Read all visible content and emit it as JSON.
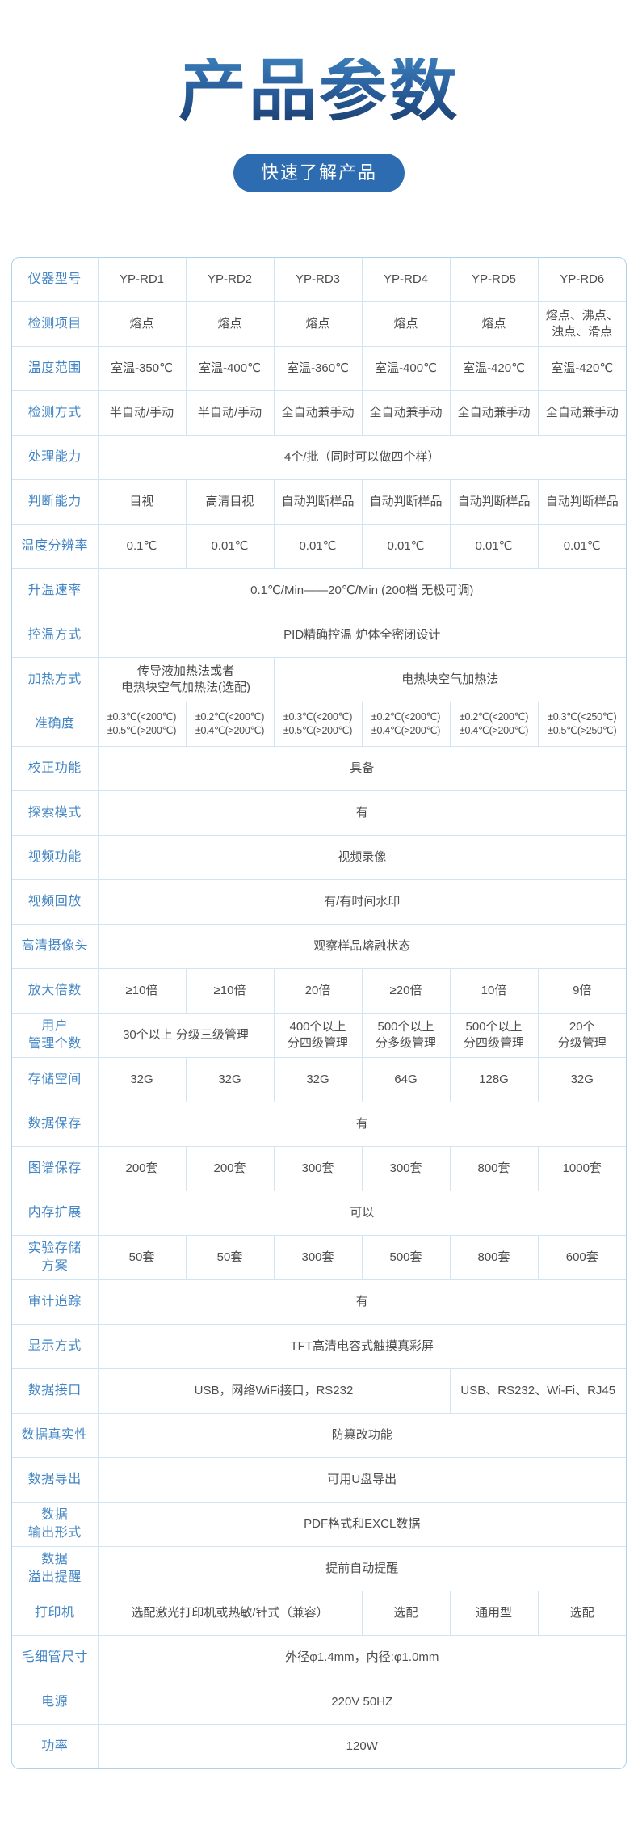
{
  "page": {
    "title": "产品参数",
    "subtitle": "快速了解产品"
  },
  "colors": {
    "title_blue_top": "#3a7db8",
    "title_blue_bottom": "#1c3f70",
    "pill_background": "#2d6cb0",
    "pill_text": "#ffffff",
    "label_text": "#4285c4",
    "cell_text": "#4d4d4d",
    "table_border": "#aed2ea",
    "table_inner_border": "#cfe4f4"
  },
  "table": {
    "rows": [
      {
        "label": "仪器型号",
        "cells": [
          {
            "text": "YP-RD1",
            "span": 1
          },
          {
            "text": "YP-RD2",
            "span": 1
          },
          {
            "text": "YP-RD3",
            "span": 1
          },
          {
            "text": "YP-RD4",
            "span": 1
          },
          {
            "text": "YP-RD5",
            "span": 1
          },
          {
            "text": "YP-RD6",
            "span": 1
          }
        ]
      },
      {
        "label": "检测项目",
        "cells": [
          {
            "text": "熔点",
            "span": 1
          },
          {
            "text": "熔点",
            "span": 1
          },
          {
            "text": "熔点",
            "span": 1
          },
          {
            "text": "熔点",
            "span": 1
          },
          {
            "text": "熔点",
            "span": 1
          },
          {
            "text": "熔点、沸点、\n浊点、滑点",
            "span": 1
          }
        ]
      },
      {
        "label": "温度范围",
        "cells": [
          {
            "text": "室温-350℃",
            "span": 1
          },
          {
            "text": "室温-400℃",
            "span": 1
          },
          {
            "text": "室温-360℃",
            "span": 1
          },
          {
            "text": "室温-400℃",
            "span": 1
          },
          {
            "text": "室温-420℃",
            "span": 1
          },
          {
            "text": "室温-420℃",
            "span": 1
          }
        ]
      },
      {
        "label": "检测方式",
        "cells": [
          {
            "text": "半自动/手动",
            "span": 1
          },
          {
            "text": "半自动/手动",
            "span": 1
          },
          {
            "text": "全自动兼手动",
            "span": 1
          },
          {
            "text": "全自动兼手动",
            "span": 1
          },
          {
            "text": "全自动兼手动",
            "span": 1
          },
          {
            "text": "全自动兼手动",
            "span": 1
          }
        ]
      },
      {
        "label": "处理能力",
        "cells": [
          {
            "text": "4个/批（同时可以做四个样）",
            "span": 6
          }
        ]
      },
      {
        "label": "判断能力",
        "cells": [
          {
            "text": "目视",
            "span": 1
          },
          {
            "text": "高清目视",
            "span": 1
          },
          {
            "text": "自动判断样品",
            "span": 1
          },
          {
            "text": "自动判断样品",
            "span": 1
          },
          {
            "text": "自动判断样品",
            "span": 1
          },
          {
            "text": "自动判断样品",
            "span": 1
          }
        ]
      },
      {
        "label": "温度分辨率",
        "cells": [
          {
            "text": "0.1℃",
            "span": 1
          },
          {
            "text": "0.01℃",
            "span": 1
          },
          {
            "text": "0.01℃",
            "span": 1
          },
          {
            "text": "0.01℃",
            "span": 1
          },
          {
            "text": "0.01℃",
            "span": 1
          },
          {
            "text": "0.01℃",
            "span": 1
          }
        ]
      },
      {
        "label": "升温速率",
        "cells": [
          {
            "text": "0.1℃/Min——20℃/Min (200档 无极可调)",
            "span": 6
          }
        ]
      },
      {
        "label": "控温方式",
        "cells": [
          {
            "text": "PID精确控温 炉体全密闭设计",
            "span": 6
          }
        ]
      },
      {
        "label": "加热方式",
        "cells": [
          {
            "text": "传导液加热法或者\n电热块空气加热法(选配)",
            "span": 2
          },
          {
            "text": "电热块空气加热法",
            "span": 4
          }
        ]
      },
      {
        "label": "准确度",
        "cells": [
          {
            "text": "±0.3℃(<200℃)\n±0.5℃(>200℃)",
            "span": 1
          },
          {
            "text": "±0.2℃(<200℃)\n±0.4℃(>200℃)",
            "span": 1
          },
          {
            "text": "±0.3℃(<200℃)\n±0.5℃(>200℃)",
            "span": 1
          },
          {
            "text": "±0.2℃(<200℃)\n±0.4℃(>200℃)",
            "span": 1
          },
          {
            "text": "±0.2℃(<200℃)\n±0.4℃(>200℃)",
            "span": 1
          },
          {
            "text": "±0.3℃(<250℃)\n±0.5℃(>250℃)",
            "span": 1
          }
        ]
      },
      {
        "label": "校正功能",
        "cells": [
          {
            "text": "具备",
            "span": 6
          }
        ]
      },
      {
        "label": "探索模式",
        "cells": [
          {
            "text": "有",
            "span": 6
          }
        ]
      },
      {
        "label": "视频功能",
        "cells": [
          {
            "text": "视频录像",
            "span": 6
          }
        ]
      },
      {
        "label": "视频回放",
        "cells": [
          {
            "text": "有/有时间水印",
            "span": 6
          }
        ]
      },
      {
        "label": "高清摄像头",
        "cells": [
          {
            "text": "观察样品熔融状态",
            "span": 6
          }
        ]
      },
      {
        "label": "放大倍数",
        "cells": [
          {
            "text": "≥10倍",
            "span": 1
          },
          {
            "text": "≥10倍",
            "span": 1
          },
          {
            "text": "20倍",
            "span": 1
          },
          {
            "text": "≥20倍",
            "span": 1
          },
          {
            "text": "10倍",
            "span": 1
          },
          {
            "text": "9倍",
            "span": 1
          }
        ]
      },
      {
        "label": "用户\n管理个数",
        "cells": [
          {
            "text": "30个以上 分级三级管理",
            "span": 2
          },
          {
            "text": "400个以上\n分四级管理",
            "span": 1
          },
          {
            "text": "500个以上\n分多级管理",
            "span": 1
          },
          {
            "text": "500个以上\n分四级管理",
            "span": 1
          },
          {
            "text": "20个\n分级管理",
            "span": 1
          }
        ]
      },
      {
        "label": "存储空间",
        "cells": [
          {
            "text": "32G",
            "span": 1
          },
          {
            "text": "32G",
            "span": 1
          },
          {
            "text": "32G",
            "span": 1
          },
          {
            "text": "64G",
            "span": 1
          },
          {
            "text": "128G",
            "span": 1
          },
          {
            "text": "32G",
            "span": 1
          }
        ]
      },
      {
        "label": "数据保存",
        "cells": [
          {
            "text": "有",
            "span": 6
          }
        ]
      },
      {
        "label": "图谱保存",
        "cells": [
          {
            "text": "200套",
            "span": 1
          },
          {
            "text": "200套",
            "span": 1
          },
          {
            "text": "300套",
            "span": 1
          },
          {
            "text": "300套",
            "span": 1
          },
          {
            "text": "800套",
            "span": 1
          },
          {
            "text": "1000套",
            "span": 1
          }
        ]
      },
      {
        "label": "内存扩展",
        "cells": [
          {
            "text": "可以",
            "span": 6
          }
        ]
      },
      {
        "label": "实验存储\n方案",
        "cells": [
          {
            "text": "50套",
            "span": 1
          },
          {
            "text": "50套",
            "span": 1
          },
          {
            "text": "300套",
            "span": 1
          },
          {
            "text": "500套",
            "span": 1
          },
          {
            "text": "800套",
            "span": 1
          },
          {
            "text": "600套",
            "span": 1
          }
        ]
      },
      {
        "label": "审计追踪",
        "cells": [
          {
            "text": "有",
            "span": 6
          }
        ]
      },
      {
        "label": "显示方式",
        "cells": [
          {
            "text": "TFT高清电容式触摸真彩屏",
            "span": 6
          }
        ]
      },
      {
        "label": "数据接口",
        "cells": [
          {
            "text": "USB，网络WiFi接口，RS232",
            "span": 4
          },
          {
            "text": "USB、RS232、Wi-Fi、RJ45",
            "span": 2
          }
        ]
      },
      {
        "label": "数据真实性",
        "cells": [
          {
            "text": "防篡改功能",
            "span": 6
          }
        ]
      },
      {
        "label": "数据导出",
        "cells": [
          {
            "text": "可用U盘导出",
            "span": 6
          }
        ]
      },
      {
        "label": "数据\n输出形式",
        "cells": [
          {
            "text": "PDF格式和EXCL数据",
            "span": 6
          }
        ]
      },
      {
        "label": "数据\n溢出提醒",
        "cells": [
          {
            "text": "提前自动提醒",
            "span": 6
          }
        ]
      },
      {
        "label": "打印机",
        "cells": [
          {
            "text": "选配激光打印机或热敏/针式（兼容）",
            "span": 3
          },
          {
            "text": "选配",
            "span": 1
          },
          {
            "text": "通用型",
            "span": 1
          },
          {
            "text": "选配",
            "span": 1
          }
        ]
      },
      {
        "label": "毛细管尺寸",
        "cells": [
          {
            "text": "外径φ1.4mm，内径:φ1.0mm",
            "span": 6
          }
        ]
      },
      {
        "label": "电源",
        "cells": [
          {
            "text": "220V 50HZ",
            "span": 6
          }
        ]
      },
      {
        "label": "功率",
        "cells": [
          {
            "text": "120W",
            "span": 6
          }
        ]
      }
    ]
  }
}
